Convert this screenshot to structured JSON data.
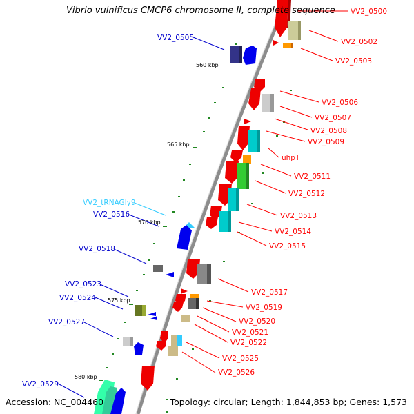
{
  "title": "Vibrio vulnificus CMCP6 chromosome II, complete sequence",
  "footer": {
    "accession": "Accession: NC_004460",
    "topology": "Topology: circular; Length: 1,844,853 bp; Genes: 1,573"
  },
  "colors": {
    "red": "#ff0000",
    "blue": "#0000cc",
    "cyan": "#33ccff",
    "teal": "#00cccc",
    "olive": "#ccbb88",
    "backbone": "#888888"
  },
  "kbp_labels": [
    "560 kbp",
    "565 kbp",
    "570 kbp",
    "575 kbp",
    "580 kbp"
  ],
  "right_labels": [
    "VV2_0500",
    "VV2_0502",
    "VV2_0503",
    "VV2_0506",
    "VV2_0507",
    "VV2_0508",
    "VV2_0509",
    "uhpT",
    "VV2_0511",
    "VV2_0512",
    "VV2_0513",
    "VV2_0514",
    "VV2_0515",
    "VV2_0517",
    "VV2_0519",
    "VV2_0520",
    "VV2_0521",
    "VV2_0522",
    "VV2_0525",
    "VV2_0526"
  ],
  "left_labels": [
    "VV2_0505",
    "VV2_tRNAGly9",
    "VV2_0516",
    "VV2_0518",
    "VV2_0523",
    "VV2_0524",
    "VV2_0527",
    "VV2_0529"
  ]
}
